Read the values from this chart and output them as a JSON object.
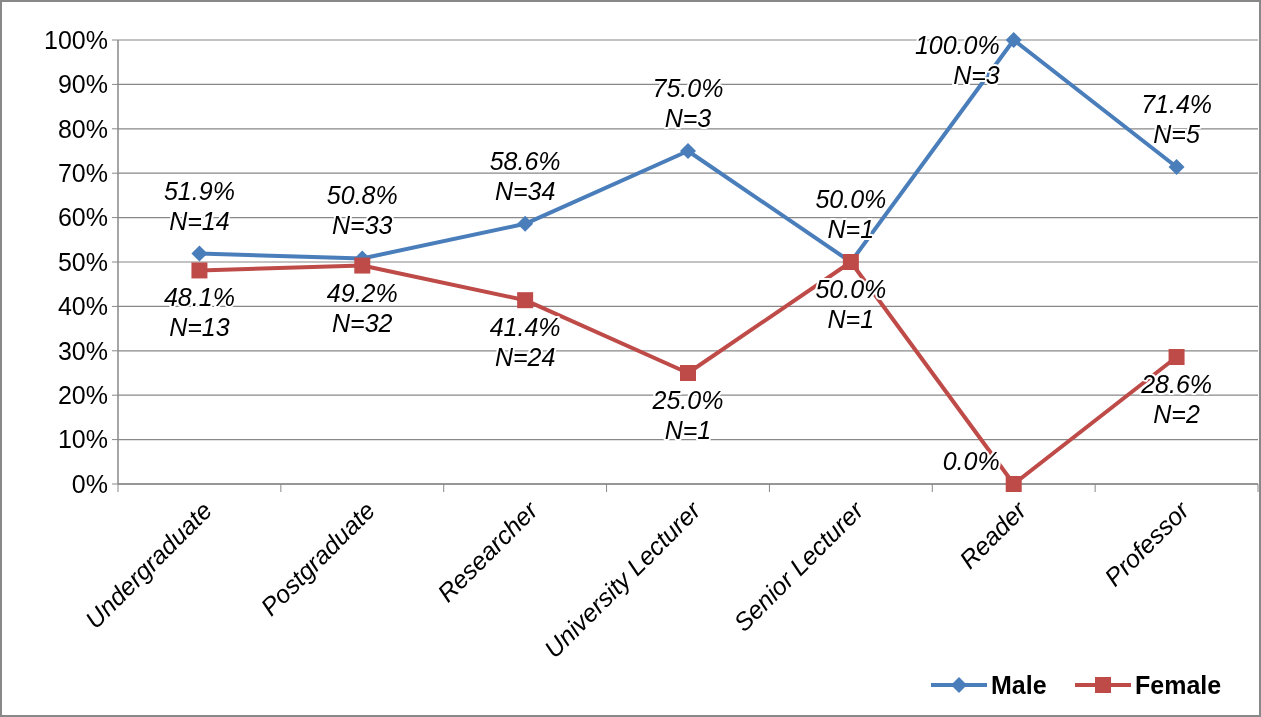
{
  "chart_data": {
    "type": "line",
    "categories": [
      "Undergraduate",
      "Postgraduate",
      "Researcher",
      "University Lecturer",
      "Senior Lecturer",
      "Reader",
      "Professor"
    ],
    "series": [
      {
        "name": "Male",
        "color": "#4a7ebb",
        "marker": "diamond",
        "values": [
          51.9,
          50.8,
          58.6,
          75.0,
          50.0,
          100.0,
          71.4
        ],
        "value_labels": [
          "51.9%\nN=14",
          "50.8%\nN=33",
          "58.6%\nN=34",
          "75.0%\nN=3",
          "50.0%\nN=1",
          "100.0%\nN=3",
          "71.4%\nN=5"
        ]
      },
      {
        "name": "Female",
        "color": "#be4b48",
        "marker": "square",
        "values": [
          48.1,
          49.2,
          41.4,
          25.0,
          50.0,
          0.0,
          28.6
        ],
        "value_labels": [
          "48.1%\nN=13",
          "49.2%\nN=32",
          "41.4%\nN=24",
          "25.0%\nN=1",
          "50.0%\nN=1",
          "0.0%",
          "28.6%\nN=2"
        ]
      }
    ],
    "ylim": [
      0,
      100
    ],
    "yticks": [
      {
        "value": 0,
        "label": "0%"
      },
      {
        "value": 10,
        "label": "10%"
      },
      {
        "value": 20,
        "label": "20%"
      },
      {
        "value": 30,
        "label": "30%"
      },
      {
        "value": 40,
        "label": "40%"
      },
      {
        "value": 50,
        "label": "50%"
      },
      {
        "value": 60,
        "label": "60%"
      },
      {
        "value": 70,
        "label": "70%"
      },
      {
        "value": 80,
        "label": "80%"
      },
      {
        "value": 90,
        "label": "90%"
      },
      {
        "value": 100,
        "label": "100%"
      }
    ],
    "grid": "y",
    "legend": "bottom right",
    "line_style": "solid"
  }
}
